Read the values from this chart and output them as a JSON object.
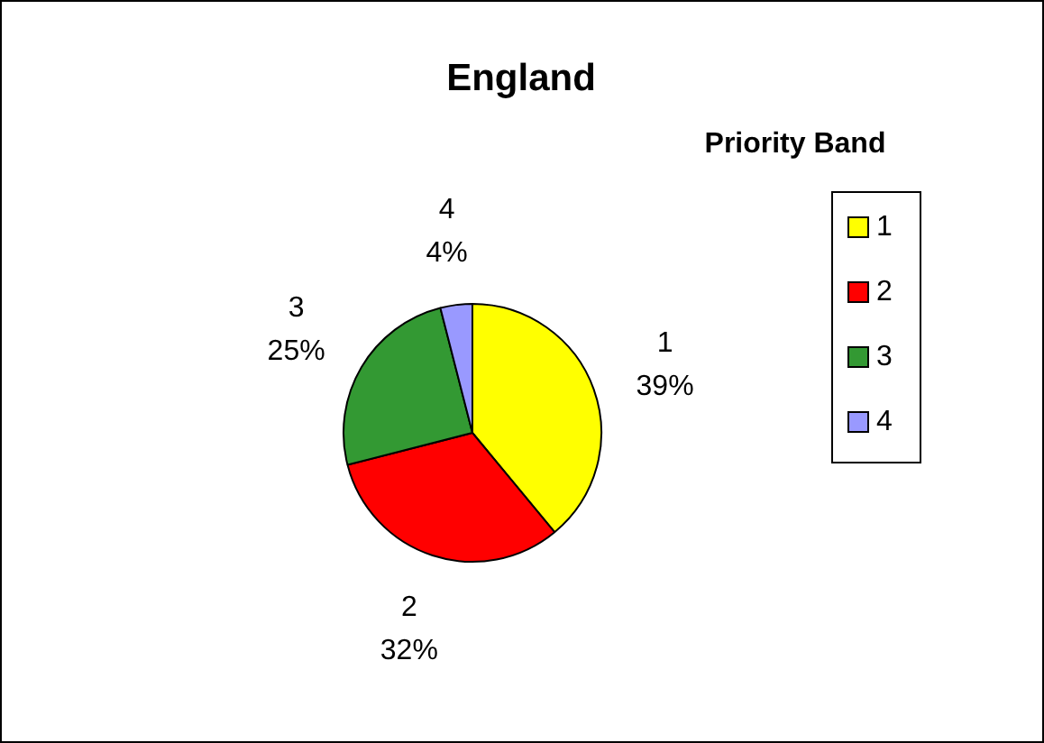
{
  "chart_data": {
    "type": "pie",
    "title": "England",
    "legend_title": "Priority Band",
    "legend": "right",
    "categories": [
      "1",
      "2",
      "3",
      "4"
    ],
    "values": [
      39,
      32,
      25,
      4
    ],
    "value_labels": [
      "39%",
      "32%",
      "25%",
      "4%"
    ],
    "colors": [
      "#ffff00",
      "#ff0000",
      "#339933",
      "#9999ff"
    ]
  }
}
